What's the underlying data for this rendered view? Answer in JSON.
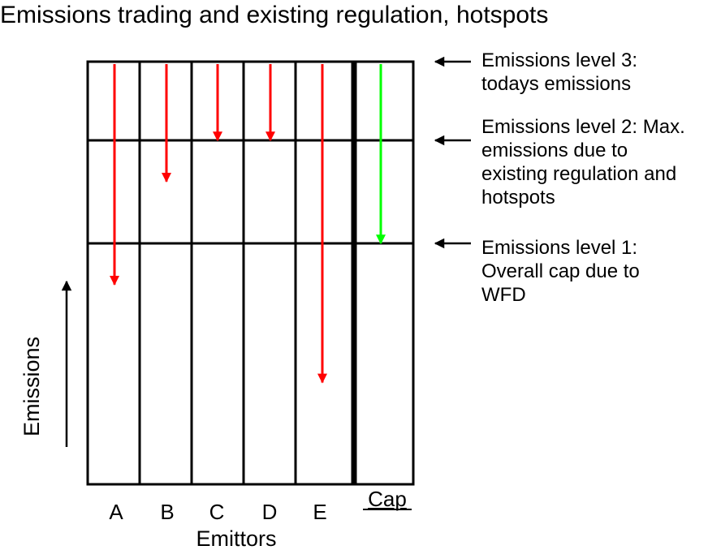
{
  "title": "Emissions trading and existing regulation, hotspots",
  "x_axis_label": "Emittors",
  "y_axis_label": "Emissions",
  "columns": [
    {
      "label": "A",
      "reduction_to_level": 0.6
    },
    {
      "label": "B",
      "reduction_to_level": 1.6
    },
    {
      "label": "C",
      "reduction_to_level": 2.0
    },
    {
      "label": "D",
      "reduction_to_level": 2.0
    },
    {
      "label": "E",
      "reduction_to_level": -0.35
    }
  ],
  "cap": {
    "label": "Cap",
    "reduction_to_level": 1.0
  },
  "levels": [
    {
      "level": 3,
      "lines": [
        "Emissions level 3:",
        "todays emissions"
      ]
    },
    {
      "level": 2,
      "lines": [
        "Emissions level 2: Max.",
        "emissions due to",
        "existing regulation and",
        "hotspots"
      ]
    },
    {
      "level": 1,
      "lines": [
        "Emissions level 1:",
        "Overall cap due to",
        "WFD"
      ]
    }
  ],
  "colors": {
    "emitter_arrow": "#ff0000",
    "cap_arrow": "#00ff00",
    "lines": "#000000"
  }
}
